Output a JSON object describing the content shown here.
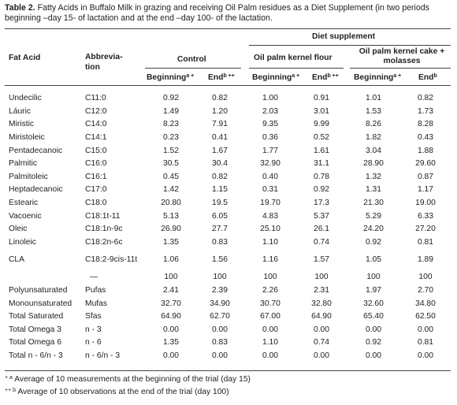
{
  "caption": {
    "label": "Table 2.",
    "text": "Fatty Acids in Buffalo Milk in grazing and receiving Oil Palm residues as a Diet Supplement (in two periods beginning –day 15- of lactation and at the end –day 100- of the lactation."
  },
  "headers": {
    "diet_supplement": "Diet supplement",
    "fatty_acid": "Fat Acid",
    "abbreviation": "Abbrevia-\ntion",
    "control": "Control",
    "oil_palm_flour": "Oil palm kernel flour",
    "oil_palm_cake": "Oil palm kernel cake + molasses",
    "control_beginning": "Beginning",
    "control_beginning_mark": "a +",
    "control_end": "End",
    "control_end_mark": "b ++",
    "flour_beginning": "Beginning",
    "flour_beginning_mark": "a +",
    "flour_end": "End",
    "flour_end_mark": "b ++",
    "cake_beginning": "Beginning",
    "cake_beginning_mark": "a +",
    "cake_end": "End",
    "cake_end_mark": "b"
  },
  "rows": [
    {
      "name": "Undecilic",
      "abbr": "C11:0",
      "v": [
        "0.92",
        "0.82",
        "1.00",
        "0.91",
        "1.01",
        "0.82"
      ]
    },
    {
      "name": "Láuric",
      "abbr": "C12:0",
      "v": [
        "1.49",
        "1.20",
        "2.03",
        "3.01",
        "1.53",
        "1.73"
      ]
    },
    {
      "name": "Miristic",
      "abbr": "C14:0",
      "v": [
        "8.23",
        "7.91",
        "9.35",
        "9.99",
        "8.26",
        "8.28"
      ]
    },
    {
      "name": "Miristoleic",
      "abbr": "C14:1",
      "v": [
        "0.23",
        "0.41",
        "0.36",
        "0.52",
        "1.82",
        "0.43"
      ]
    },
    {
      "name": "Pentadecanoic",
      "abbr": "C15:0",
      "v": [
        "1.52",
        "1.67",
        "1.77",
        "1.61",
        "3.04",
        "1.88"
      ]
    },
    {
      "name": "Palmitic",
      "abbr": "C16:0",
      "v": [
        "30.5",
        "30.4",
        "32.90",
        "31.1",
        "28.90",
        "29.60"
      ]
    },
    {
      "name": "Palmitoleic",
      "abbr": "C16:1",
      "v": [
        "0.45",
        "0.82",
        "0.40",
        "0.78",
        "1.32",
        "0.87"
      ]
    },
    {
      "name": "Heptadecanoic",
      "abbr": "C17:0",
      "v": [
        "1.42",
        "1.15",
        "0.31",
        "0.92",
        "1.31",
        "1.17"
      ]
    },
    {
      "name": "Estearic",
      "abbr": "C18:0",
      "v": [
        "20.80",
        "19.5",
        "19.70",
        "17.3",
        "21.30",
        "19.00"
      ]
    },
    {
      "name": "Vacoenic",
      "abbr": "C18:1t-11",
      "v": [
        "5.13",
        "6.05",
        "4.83",
        "5.37",
        "5.29",
        "6.33"
      ]
    },
    {
      "name": "Oleic",
      "abbr": "C18:1n-9c",
      "v": [
        "26.90",
        "27.7",
        "25.10",
        "26.1",
        "24.20",
        "27.20"
      ]
    },
    {
      "name": "Linoleic",
      "abbr": "C18:2n-6c",
      "v": [
        "1.35",
        "0.83",
        "1.10",
        "0.74",
        "0.92",
        "0.81"
      ]
    },
    {
      "name": "CLA",
      "abbr": "C18:2-9cis-11t",
      "v": [
        "1.06",
        "1.56",
        "1.16",
        "1.57",
        "1.05",
        "1.89"
      ]
    },
    {
      "name": "",
      "abbr": "—",
      "v": [
        "100",
        "100",
        "100",
        "100",
        "100",
        "100"
      ]
    },
    {
      "name": "Polyunsaturated",
      "abbr": "Pufas",
      "v": [
        "2.41",
        "2.39",
        "2.26",
        "2.31",
        "1.97",
        "2.70"
      ]
    },
    {
      "name": "Monounsaturated",
      "abbr": "Mufas",
      "v": [
        "32.70",
        "34.90",
        "30.70",
        "32.80",
        "32.60",
        "34.80"
      ]
    },
    {
      "name": "Total Saturated",
      "abbr": "Sfas",
      "v": [
        "64.90",
        "62.70",
        "67.00",
        "64.90",
        "65.40",
        "62.50"
      ]
    },
    {
      "name": "Total Omega 3",
      "abbr": "n - 3",
      "v": [
        "0.00",
        "0.00",
        "0.00",
        "0.00",
        "0.00",
        "0.00"
      ]
    },
    {
      "name": "Total Omega 6",
      "abbr": "n - 6",
      "v": [
        "1.35",
        "0.83",
        "1.10",
        "0.74",
        "0.92",
        "0.81"
      ]
    },
    {
      "name": "Total n - 6/n - 3",
      "abbr": "n - 6/n - 3",
      "v": [
        "0.00",
        "0.00",
        "0.00",
        "0.00",
        "0.00",
        "0.00"
      ]
    }
  ],
  "footnotes": [
    {
      "mark": "+ a",
      "text": "Average of 10 measurements at the beginning of the trial (day 15)"
    },
    {
      "mark": "++ b",
      "text": "Average of 10 observations at the end of the trial (day 100)"
    }
  ]
}
